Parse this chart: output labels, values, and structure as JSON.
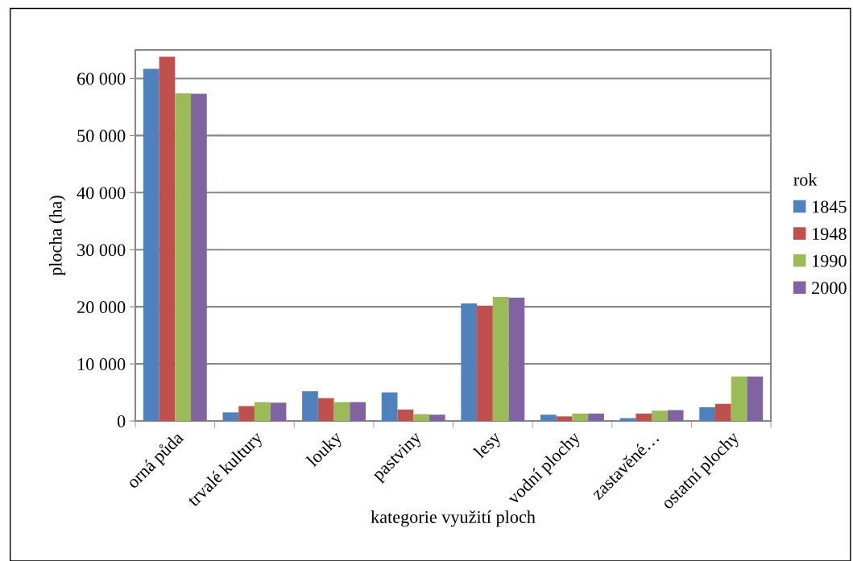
{
  "chart_data": {
    "type": "bar",
    "xlabel": "kategorie využití ploch",
    "ylabel": "plocha (ha)",
    "legend_title": "rok",
    "categories": [
      "orná půda",
      "trvalé kultury",
      "louky",
      "pastviny",
      "lesy",
      "vodní plochy",
      "zastavěné…",
      "ostatní plochy"
    ],
    "series": [
      {
        "name": "1845",
        "color": "#4f81bd",
        "values": [
          61700,
          1500,
          5200,
          5000,
          20600,
          1100,
          500,
          2400
        ]
      },
      {
        "name": "1948",
        "color": "#c0504d",
        "values": [
          63800,
          2600,
          4000,
          2000,
          20200,
          800,
          1300,
          3000
        ]
      },
      {
        "name": "1990",
        "color": "#9bbb59",
        "values": [
          57400,
          3300,
          3300,
          1200,
          21700,
          1300,
          1800,
          7800
        ]
      },
      {
        "name": "2000",
        "color": "#8064a2",
        "values": [
          57300,
          3200,
          3300,
          1100,
          21600,
          1300,
          1900,
          7800
        ]
      }
    ],
    "ylim": [
      0,
      65000
    ],
    "yticks": [
      {
        "value": 0,
        "label": "0"
      },
      {
        "value": 10000,
        "label": "10 000"
      },
      {
        "value": 20000,
        "label": "20 000"
      },
      {
        "value": 30000,
        "label": "30 000"
      },
      {
        "value": 40000,
        "label": "40 000"
      },
      {
        "value": 50000,
        "label": "50 000"
      },
      {
        "value": 60000,
        "label": "60 000"
      }
    ],
    "grid": "y",
    "legend": "right"
  }
}
